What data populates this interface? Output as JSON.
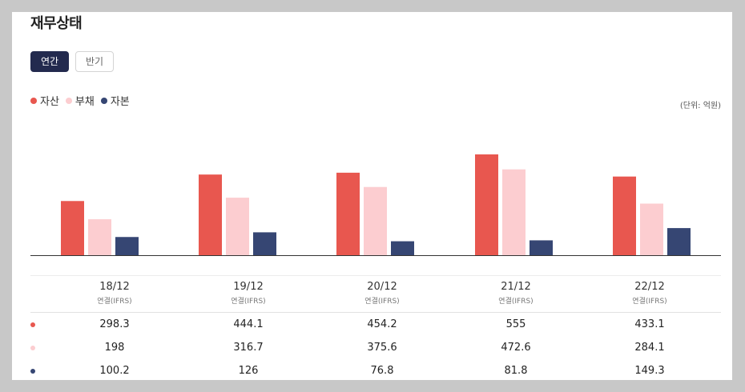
{
  "title": "재무상태",
  "tabs": [
    {
      "label": "연간",
      "active": true
    },
    {
      "label": "반기",
      "active": false
    }
  ],
  "unit_label": "(단위: 억원)",
  "colors": {
    "assets": "#e8574f",
    "liabilities": "#fccdd0",
    "equity": "#364673",
    "tab_active": "#232a4e"
  },
  "chart_data": {
    "type": "bar",
    "categories": [
      "18/12",
      "19/12",
      "20/12",
      "21/12",
      "22/12"
    ],
    "category_sublabel": "연결(IFRS)",
    "series": [
      {
        "name": "자산",
        "values": [
          298.3,
          444.1,
          454.2,
          555,
          433.1
        ]
      },
      {
        "name": "부채",
        "values": [
          198,
          316.7,
          375.6,
          472.6,
          284.1
        ]
      },
      {
        "name": "자본",
        "values": [
          100.2,
          126,
          76.8,
          81.8,
          149.3
        ]
      }
    ],
    "legend_position": "top-left",
    "grid": false
  },
  "table": {
    "rows": [
      [
        "298.3",
        "444.1",
        "454.2",
        "555",
        "433.1"
      ],
      [
        "198",
        "316.7",
        "375.6",
        "472.6",
        "284.1"
      ],
      [
        "100.2",
        "126",
        "76.8",
        "81.8",
        "149.3"
      ]
    ]
  }
}
